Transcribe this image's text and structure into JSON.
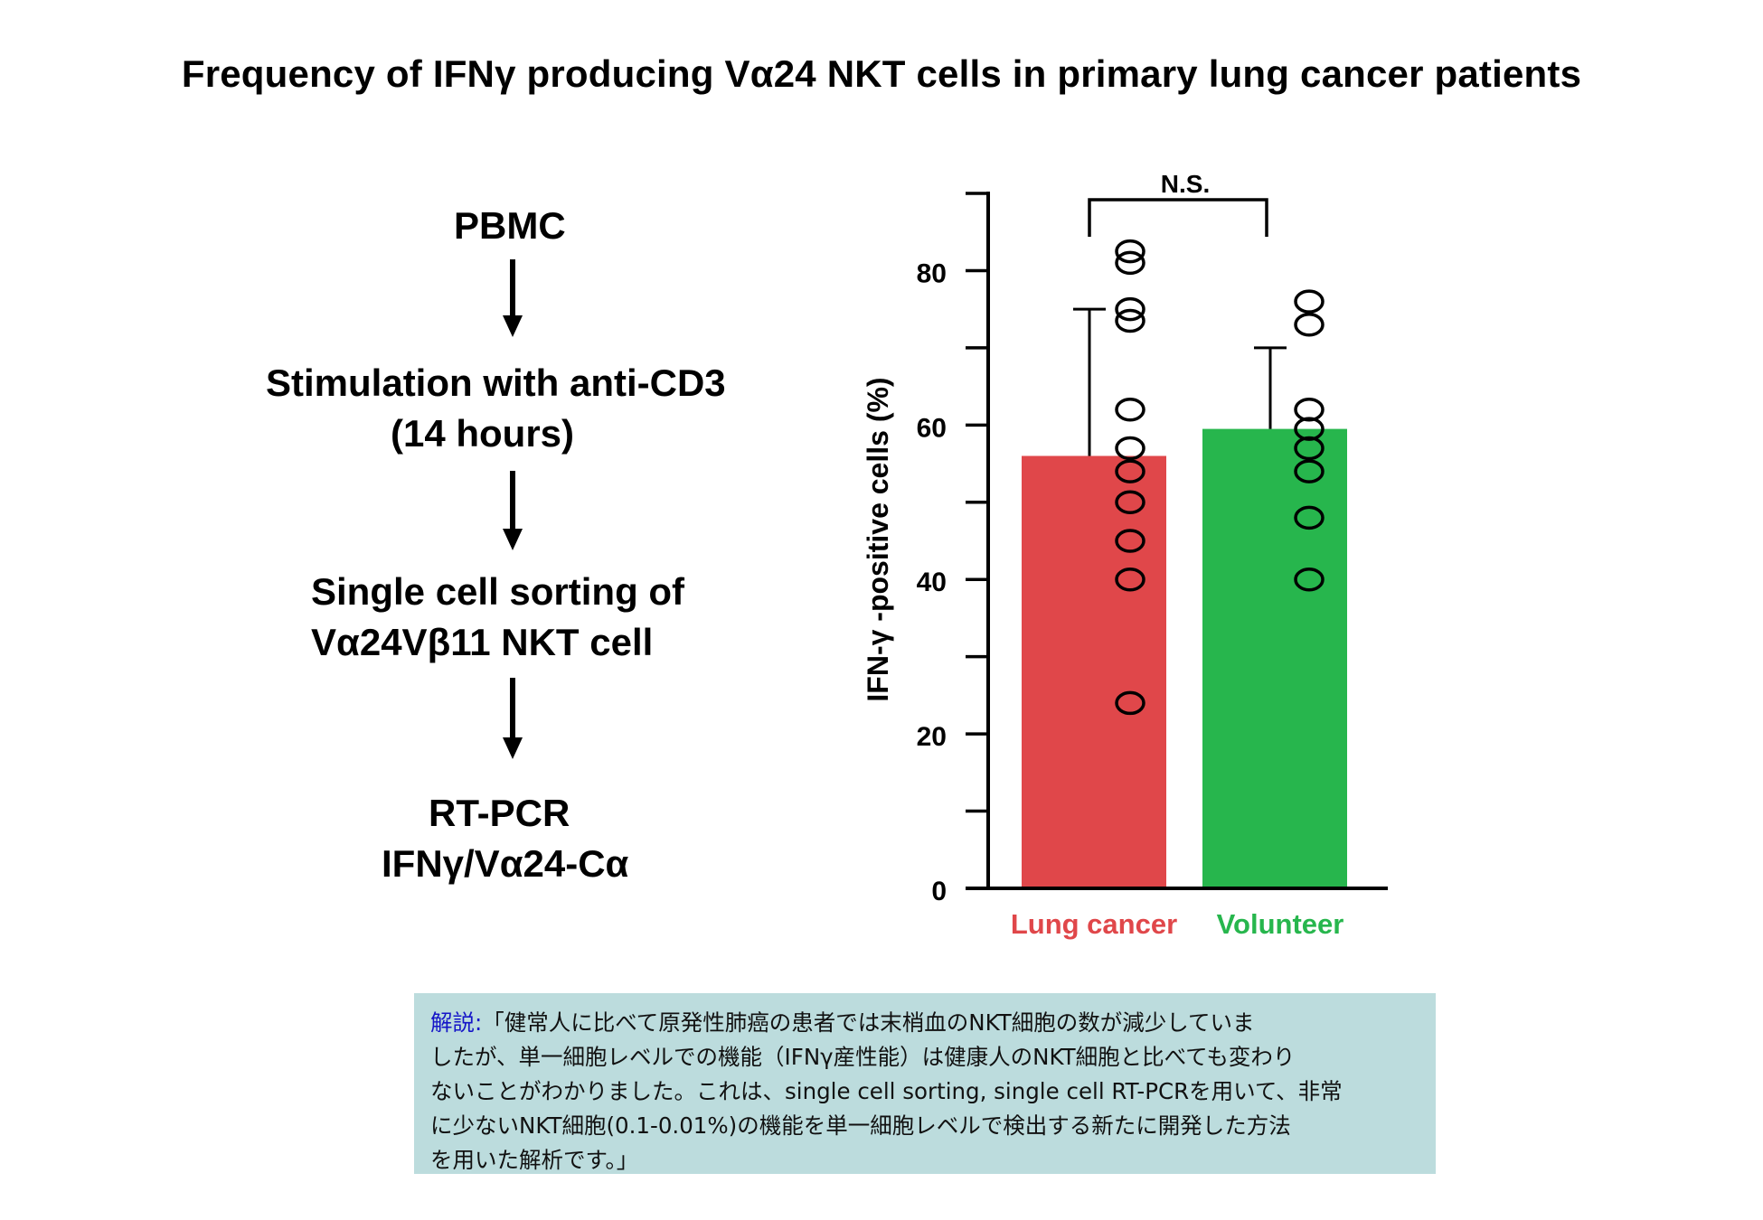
{
  "title": "Frequency of IFNγ producing Vα24 NKT cells in primary lung cancer patients",
  "flow": {
    "step1": "PBMC",
    "step2_line1": "Stimulation with anti-CD3",
    "step2_line2": "(14 hours)",
    "step3_line1": "Single cell sorting of",
    "step3_line2": "Vα24Vβ11 NKT cell",
    "step4_line1": "RT-PCR",
    "step4_line2": "IFNγ/Vα24-Cα"
  },
  "chart_data": {
    "type": "bar",
    "categories": [
      "Lung cancer",
      "Volunteer"
    ],
    "values": [
      56,
      59.5
    ],
    "error_upper": [
      75,
      70
    ],
    "individual_points": [
      [
        82.5,
        81,
        75,
        73.5,
        62,
        57,
        54,
        50,
        45,
        40,
        24
      ],
      [
        76,
        73,
        62,
        59.5,
        57,
        54,
        48,
        40
      ]
    ],
    "colors": [
      "#e0474a",
      "#27b64d"
    ],
    "ylabel": "IFN-γ -positive cells (%)",
    "yticks": [
      0,
      20,
      40,
      60,
      80
    ],
    "ylim": [
      0,
      90
    ],
    "grid": false,
    "annotation": "N.S."
  },
  "note": {
    "lead": "解説:",
    "lines": [
      "「健常人に比べて原発性肺癌の患者では末梢血のNKT細胞の数が減少していま",
      "したが、単一細胞レベルでの機能（IFNγ産性能）は健康人のNKT細胞と比べても変わり",
      "ないことがわかりました。これは、single cell sorting, single cell RT-PCRを用いて、非常",
      "に少ないNKT細胞(0.1-0.01%)の機能を単一細胞レベルで検出する新たに開発した方法",
      "を用いた解析です。」"
    ]
  }
}
